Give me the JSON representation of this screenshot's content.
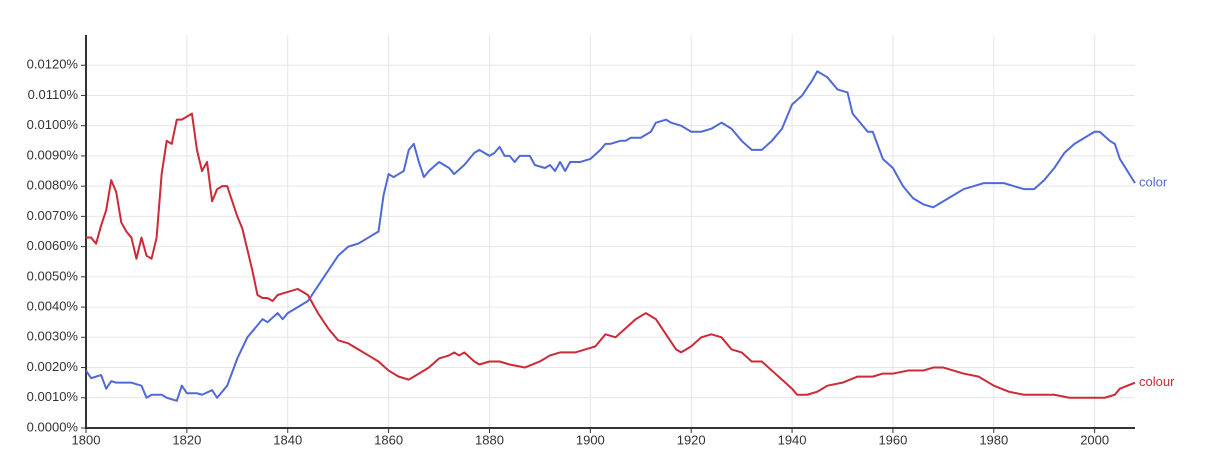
{
  "chart_data": {
    "type": "line",
    "xlim": [
      1800,
      2008
    ],
    "ylim": [
      0,
      0.013
    ],
    "xticks": [
      1800,
      1820,
      1840,
      1860,
      1880,
      1900,
      1920,
      1940,
      1960,
      1980,
      2000
    ],
    "yticks": [
      {
        "value": 0,
        "label": "0.0000%"
      },
      {
        "value": 0.001,
        "label": "0.0010%"
      },
      {
        "value": 0.002,
        "label": "0.0020%"
      },
      {
        "value": 0.003,
        "label": "0.0030%"
      },
      {
        "value": 0.004,
        "label": "0.0040%"
      },
      {
        "value": 0.005,
        "label": "0.0050%"
      },
      {
        "value": 0.006,
        "label": "0.0060%"
      },
      {
        "value": 0.007,
        "label": "0.0070%"
      },
      {
        "value": 0.008,
        "label": "0.0080%"
      },
      {
        "value": 0.009,
        "label": "0.0090%"
      },
      {
        "value": 0.01,
        "label": "0.0100%"
      },
      {
        "value": 0.011,
        "label": "0.0110%"
      },
      {
        "value": 0.012,
        "label": "0.0120%"
      }
    ],
    "grid": true,
    "series": [
      {
        "name": "color",
        "color": "#4f6ad8",
        "x": [
          1800,
          1801,
          1803,
          1804,
          1805,
          1806,
          1809,
          1811,
          1812,
          1813,
          1815,
          1816,
          1818,
          1819,
          1820,
          1822,
          1823,
          1825,
          1826,
          1828,
          1830,
          1832,
          1834,
          1835,
          1836,
          1838,
          1839,
          1840,
          1842,
          1844,
          1846,
          1848,
          1850,
          1852,
          1854,
          1856,
          1858,
          1859,
          1860,
          1861,
          1862,
          1863,
          1864,
          1865,
          1866,
          1867,
          1868,
          1870,
          1872,
          1873,
          1875,
          1877,
          1878,
          1880,
          1881,
          1882,
          1883,
          1884,
          1885,
          1886,
          1888,
          1889,
          1891,
          1892,
          1893,
          1894,
          1895,
          1896,
          1898,
          1900,
          1902,
          1903,
          1904,
          1906,
          1907,
          1908,
          1910,
          1912,
          1913,
          1915,
          1916,
          1918,
          1920,
          1922,
          1924,
          1926,
          1928,
          1930,
          1932,
          1934,
          1936,
          1938,
          1940,
          1942,
          1944,
          1945,
          1947,
          1949,
          1951,
          1952,
          1953,
          1955,
          1956,
          1958,
          1960,
          1962,
          1964,
          1966,
          1968,
          1970,
          1972,
          1974,
          1976,
          1978,
          1982,
          1984,
          1986,
          1988,
          1990,
          1992,
          1994,
          1996,
          1998,
          1999,
          2000,
          2001,
          2003,
          2004,
          2005,
          2008
        ],
        "values": [
          0.0019,
          0.00165,
          0.00175,
          0.0013,
          0.00155,
          0.0015,
          0.0015,
          0.0014,
          0.001,
          0.0011,
          0.0011,
          0.001,
          0.0009,
          0.0014,
          0.00115,
          0.00115,
          0.0011,
          0.00125,
          0.001,
          0.0014,
          0.0023,
          0.003,
          0.0034,
          0.0036,
          0.0035,
          0.0038,
          0.0036,
          0.0038,
          0.004,
          0.0042,
          0.0047,
          0.0052,
          0.0057,
          0.006,
          0.0061,
          0.0063,
          0.0065,
          0.0077,
          0.0084,
          0.0083,
          0.0084,
          0.0085,
          0.0092,
          0.0094,
          0.0088,
          0.0083,
          0.0085,
          0.0088,
          0.0086,
          0.0084,
          0.0087,
          0.0091,
          0.0092,
          0.009,
          0.0091,
          0.0093,
          0.009,
          0.009,
          0.0088,
          0.009,
          0.009,
          0.0087,
          0.0086,
          0.0087,
          0.0085,
          0.0088,
          0.0085,
          0.0088,
          0.0088,
          0.0089,
          0.0092,
          0.0094,
          0.0094,
          0.0095,
          0.0095,
          0.0096,
          0.0096,
          0.0098,
          0.0101,
          0.0102,
          0.0101,
          0.01,
          0.0098,
          0.0098,
          0.0099,
          0.0101,
          0.0099,
          0.0095,
          0.0092,
          0.0092,
          0.0095,
          0.0099,
          0.0107,
          0.011,
          0.0115,
          0.0118,
          0.0116,
          0.0112,
          0.0111,
          0.0104,
          0.0102,
          0.0098,
          0.0098,
          0.0089,
          0.0086,
          0.008,
          0.0076,
          0.0074,
          0.0073,
          0.0075,
          0.0077,
          0.0079,
          0.008,
          0.0081,
          0.0081,
          0.008,
          0.0079,
          0.0079,
          0.0082,
          0.0086,
          0.0091,
          0.0094,
          0.0096,
          0.0097,
          0.0098,
          0.0098,
          0.0095,
          0.0094,
          0.0089,
          0.0081
        ]
      },
      {
        "name": "colour",
        "color": "#cc2a36",
        "x": [
          1800,
          1801,
          1802,
          1803,
          1804,
          1805,
          1806,
          1807,
          1808,
          1809,
          1810,
          1811,
          1812,
          1813,
          1814,
          1815,
          1816,
          1817,
          1818,
          1819,
          1820,
          1821,
          1822,
          1823,
          1824,
          1825,
          1826,
          1827,
          1828,
          1830,
          1831,
          1832,
          1833,
          1834,
          1835,
          1836,
          1837,
          1838,
          1840,
          1842,
          1843,
          1844,
          1846,
          1848,
          1850,
          1852,
          1854,
          1856,
          1858,
          1860,
          1862,
          1864,
          1866,
          1868,
          1870,
          1872,
          1873,
          1874,
          1875,
          1877,
          1878,
          1880,
          1882,
          1884,
          1887,
          1890,
          1892,
          1894,
          1897,
          1899,
          1901,
          1903,
          1905,
          1907,
          1909,
          1911,
          1913,
          1915,
          1917,
          1918,
          1920,
          1922,
          1924,
          1926,
          1928,
          1930,
          1932,
          1934,
          1936,
          1938,
          1940,
          1941,
          1943,
          1945,
          1947,
          1950,
          1953,
          1956,
          1958,
          1960,
          1963,
          1966,
          1968,
          1970,
          1972,
          1974,
          1977,
          1980,
          1983,
          1986,
          1989,
          1992,
          1995,
          1998,
          2000,
          2002,
          2004,
          2005,
          2008
        ],
        "values": [
          0.0063,
          0.0063,
          0.0061,
          0.0067,
          0.0072,
          0.0082,
          0.0078,
          0.0068,
          0.0065,
          0.0063,
          0.0056,
          0.0063,
          0.0057,
          0.0056,
          0.0063,
          0.0084,
          0.0095,
          0.0094,
          0.0102,
          0.0102,
          0.0103,
          0.0104,
          0.0092,
          0.0085,
          0.0088,
          0.0075,
          0.0079,
          0.008,
          0.008,
          0.007,
          0.0066,
          0.0059,
          0.0052,
          0.0044,
          0.0043,
          0.0043,
          0.0042,
          0.0044,
          0.0045,
          0.0046,
          0.0045,
          0.0044,
          0.0038,
          0.0033,
          0.0029,
          0.0028,
          0.0026,
          0.0024,
          0.0022,
          0.0019,
          0.0017,
          0.0016,
          0.0018,
          0.002,
          0.0023,
          0.0024,
          0.0025,
          0.0024,
          0.0025,
          0.0022,
          0.0021,
          0.0022,
          0.0022,
          0.0021,
          0.002,
          0.0022,
          0.0024,
          0.0025,
          0.0025,
          0.0026,
          0.0027,
          0.0031,
          0.003,
          0.0033,
          0.0036,
          0.0038,
          0.0036,
          0.0031,
          0.0026,
          0.0025,
          0.0027,
          0.003,
          0.0031,
          0.003,
          0.0026,
          0.0025,
          0.0022,
          0.0022,
          0.0019,
          0.0016,
          0.0013,
          0.0011,
          0.0011,
          0.0012,
          0.0014,
          0.0015,
          0.0017,
          0.0017,
          0.0018,
          0.0018,
          0.0019,
          0.0019,
          0.002,
          0.002,
          0.0019,
          0.0018,
          0.0017,
          0.0014,
          0.0012,
          0.0011,
          0.0011,
          0.0011,
          0.001,
          0.001,
          0.001,
          0.001,
          0.0011,
          0.0013,
          0.0015
        ]
      }
    ]
  }
}
